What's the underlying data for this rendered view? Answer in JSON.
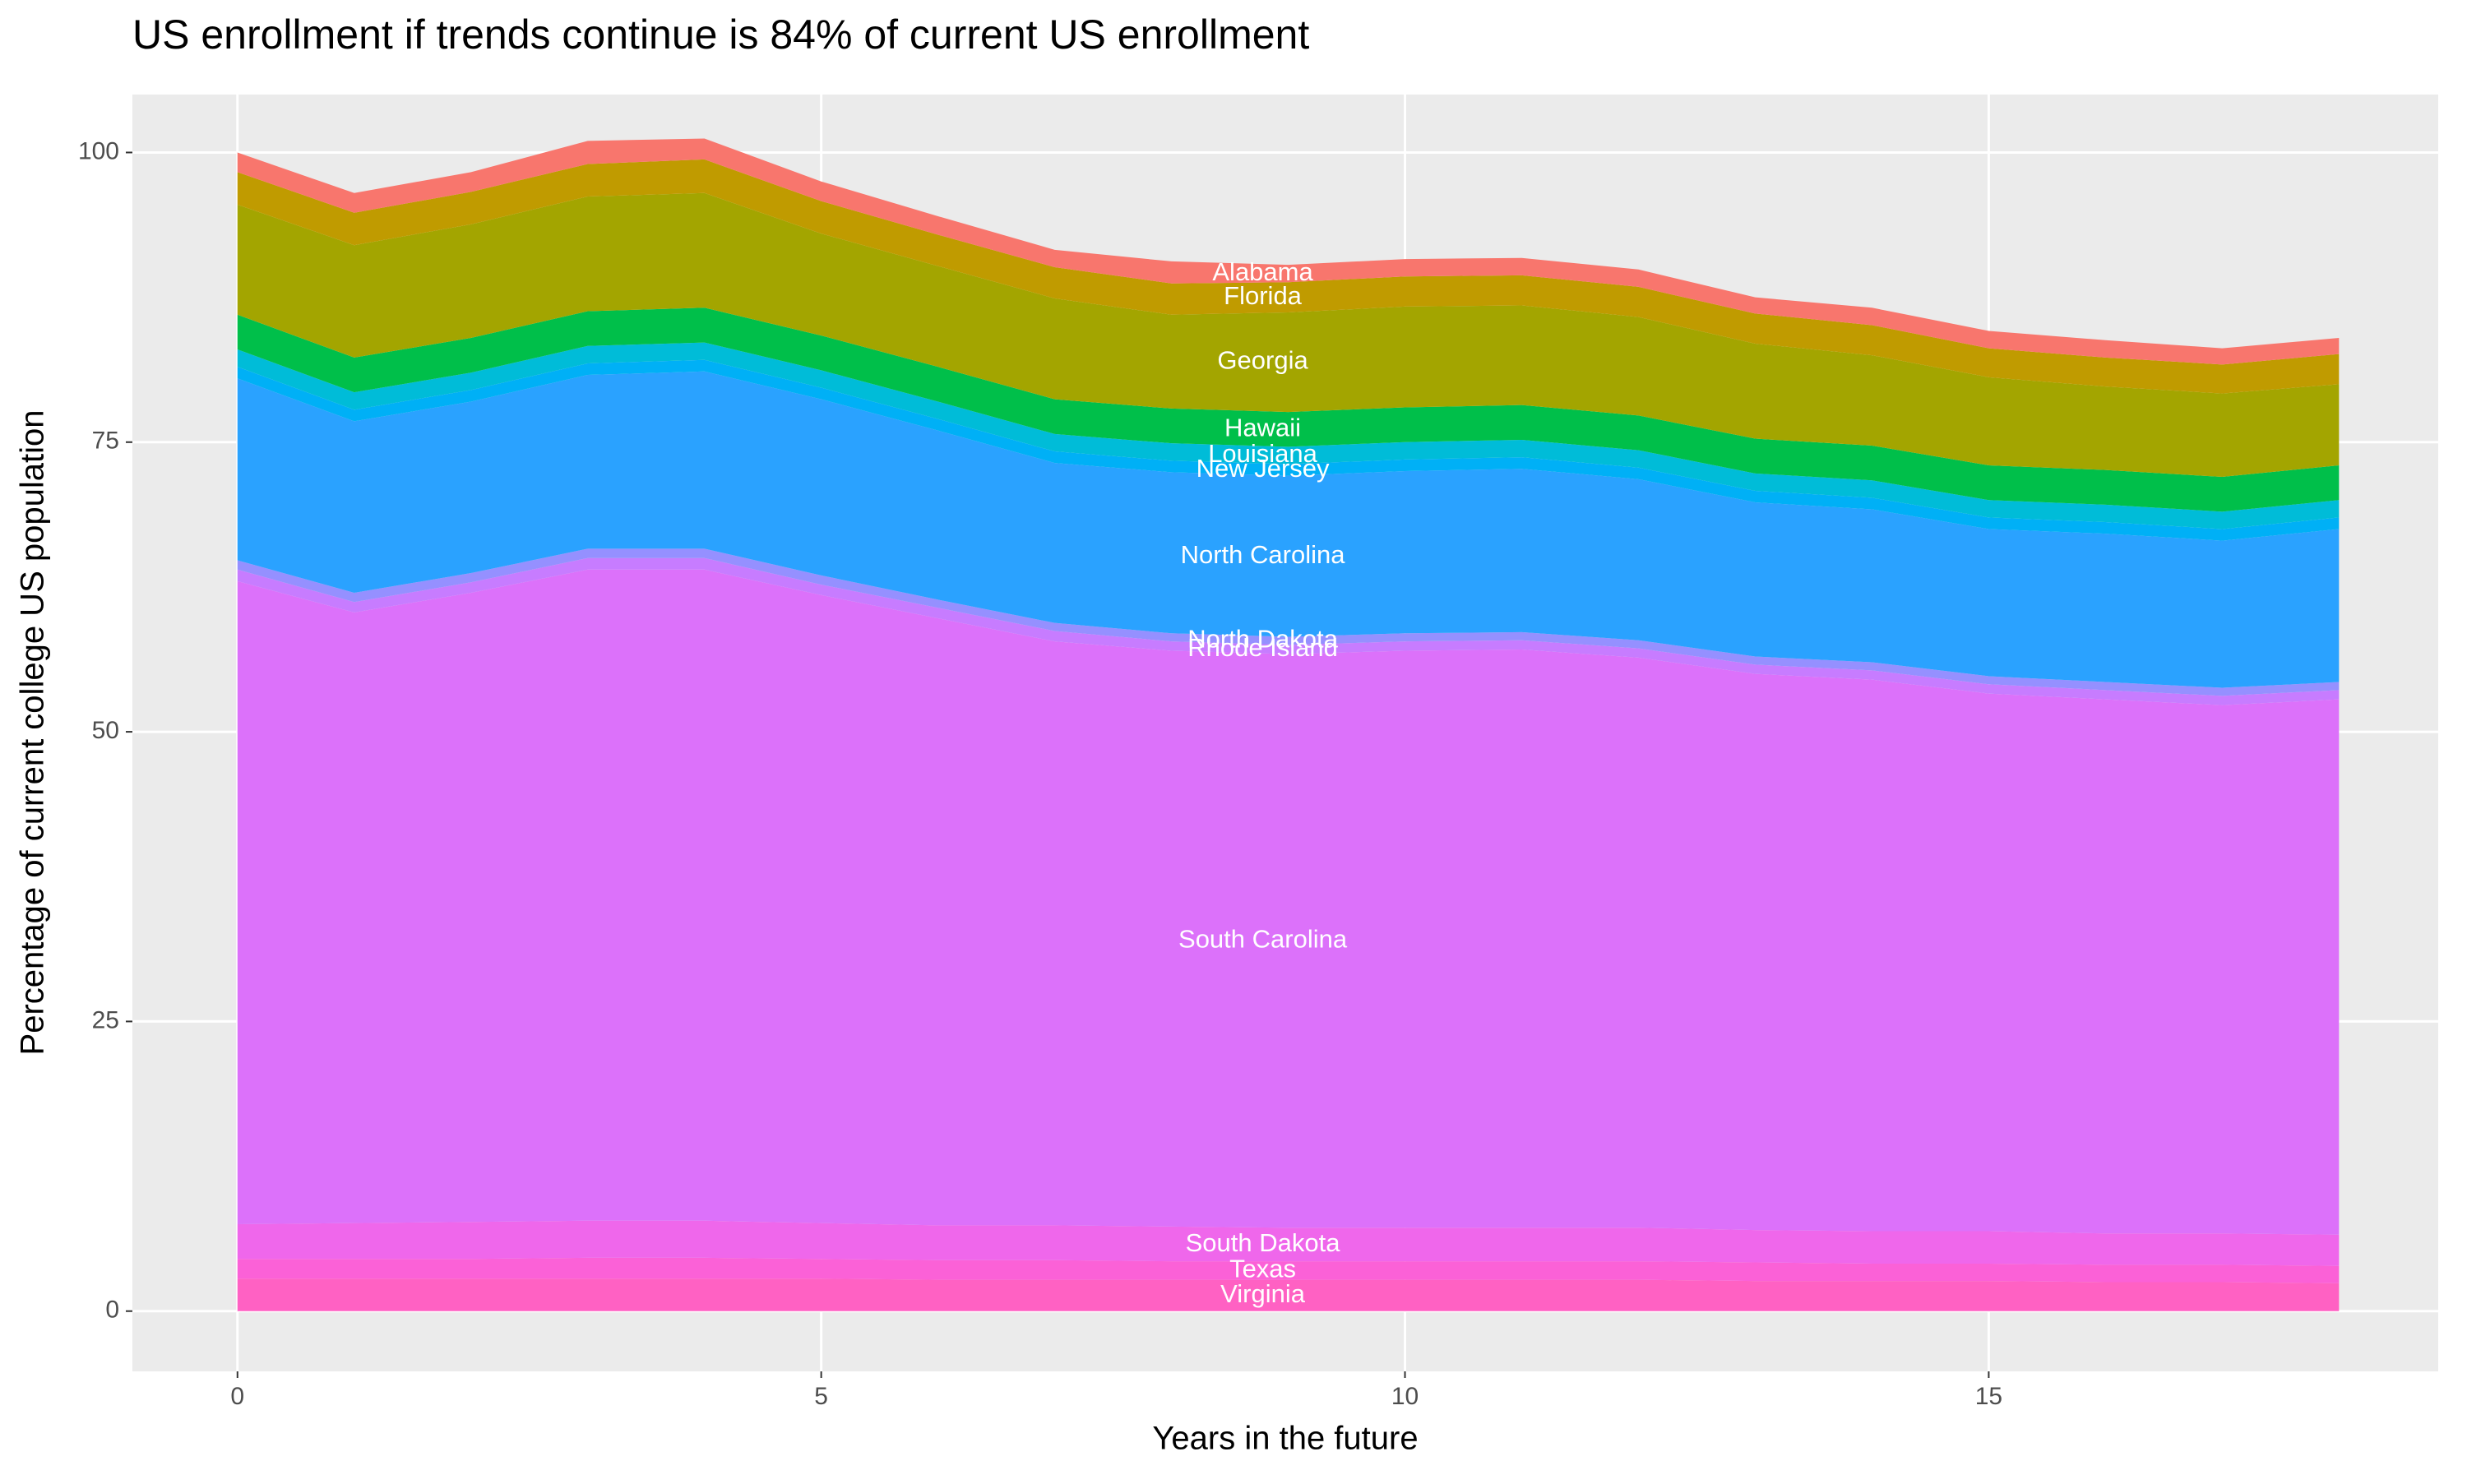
{
  "chart_data": {
    "type": "stacked_area",
    "title": "US enrollment if trends continue is 84% of current US enrollment",
    "x_label": "Years in the future",
    "y_label": "Percentage of current college US population",
    "x": [
      0,
      1,
      2,
      3,
      4,
      5,
      6,
      7,
      8,
      9,
      10,
      11,
      12,
      13,
      14,
      15,
      16,
      17,
      18
    ],
    "xlim": [
      -0.9,
      18.85
    ],
    "xticks": [
      0,
      5,
      10,
      15
    ],
    "ylim": [
      -5.2,
      105
    ],
    "yticks": [
      0,
      25,
      50,
      75,
      100
    ],
    "grid": true,
    "series": [
      {
        "name": "Virginia",
        "color": "#FF61C3",
        "values": [
          2.8,
          2.8,
          2.8,
          2.8,
          2.8,
          2.8,
          2.7,
          2.7,
          2.7,
          2.7,
          2.7,
          2.7,
          2.7,
          2.6,
          2.6,
          2.6,
          2.5,
          2.5,
          2.4
        ]
      },
      {
        "name": "Texas",
        "color": "#FB61D7",
        "values": [
          1.7,
          1.7,
          1.7,
          1.8,
          1.8,
          1.7,
          1.7,
          1.7,
          1.6,
          1.6,
          1.6,
          1.6,
          1.6,
          1.6,
          1.5,
          1.5,
          1.5,
          1.5,
          1.5
        ]
      },
      {
        "name": "South Dakota",
        "color": "#EF67EB",
        "values": [
          3.0,
          3.1,
          3.2,
          3.2,
          3.2,
          3.1,
          3.0,
          3.0,
          3.0,
          2.9,
          2.9,
          2.9,
          2.9,
          2.8,
          2.8,
          2.8,
          2.7,
          2.7,
          2.7
        ]
      },
      {
        "name": "South Carolina",
        "color": "#DC71FA",
        "values": [
          55.5,
          52.7,
          54.3,
          56.2,
          56.2,
          54.2,
          52.4,
          50.4,
          49.7,
          49.5,
          49.8,
          49.9,
          49.2,
          48.0,
          47.6,
          46.4,
          46.1,
          45.6,
          46.2
        ]
      },
      {
        "name": "Rhode Island",
        "color": "#C77CFF",
        "values": [
          1.0,
          0.9,
          0.9,
          1.0,
          1.0,
          0.9,
          0.9,
          0.9,
          0.8,
          0.8,
          0.8,
          0.8,
          0.8,
          0.8,
          0.8,
          0.8,
          0.8,
          0.8,
          0.8
        ]
      },
      {
        "name": "North Dakota",
        "color": "#9590FF",
        "values": [
          0.8,
          0.8,
          0.8,
          0.8,
          0.8,
          0.8,
          0.7,
          0.7,
          0.7,
          0.7,
          0.7,
          0.7,
          0.7,
          0.7,
          0.7,
          0.7,
          0.7,
          0.7,
          0.7
        ]
      },
      {
        "name": "North Carolina",
        "color": "#2AA2FF",
        "values": [
          15.7,
          14.8,
          14.8,
          15.0,
          15.3,
          15.2,
          14.6,
          13.8,
          13.9,
          13.9,
          14.0,
          14.1,
          13.9,
          13.3,
          13.2,
          12.7,
          12.8,
          12.7,
          13.2
        ]
      },
      {
        "name": "New Jersey",
        "color": "#00B0F6",
        "values": [
          1.0,
          1.0,
          1.0,
          1.0,
          1.0,
          1.0,
          1.0,
          1.0,
          1.0,
          1.0,
          1.0,
          1.0,
          1.0,
          1.0,
          1.0,
          1.0,
          1.0,
          1.0,
          1.0
        ]
      },
      {
        "name": "Louisiana",
        "color": "#00BCD8",
        "values": [
          1.5,
          1.5,
          1.5,
          1.5,
          1.5,
          1.5,
          1.5,
          1.5,
          1.5,
          1.5,
          1.5,
          1.5,
          1.5,
          1.5,
          1.5,
          1.5,
          1.5,
          1.5,
          1.5
        ]
      },
      {
        "name": "Hawaii",
        "color": "#00BF4A",
        "values": [
          3.0,
          3.0,
          3.0,
          3.0,
          3.0,
          3.0,
          3.0,
          3.0,
          3.0,
          3.0,
          3.0,
          3.0,
          3.0,
          3.0,
          3.0,
          3.0,
          3.0,
          3.0,
          3.0
        ]
      },
      {
        "name": "Georgia",
        "color": "#A3A500",
        "values": [
          9.5,
          9.7,
          9.8,
          9.9,
          9.9,
          8.8,
          8.7,
          8.7,
          8.1,
          8.6,
          8.7,
          8.6,
          8.5,
          8.2,
          7.8,
          7.6,
          7.2,
          7.2,
          7.0
        ]
      },
      {
        "name": "Florida",
        "color": "#C09B00",
        "values": [
          2.8,
          2.8,
          2.8,
          2.8,
          2.9,
          2.8,
          2.7,
          2.7,
          2.7,
          2.6,
          2.6,
          2.6,
          2.6,
          2.6,
          2.6,
          2.5,
          2.5,
          2.5,
          2.6
        ]
      },
      {
        "name": "Alabama",
        "color": "#F8766D",
        "values": [
          1.7,
          1.7,
          1.7,
          2.0,
          1.8,
          1.7,
          1.6,
          1.5,
          1.9,
          1.5,
          1.5,
          1.5,
          1.5,
          1.4,
          1.5,
          1.5,
          1.5,
          1.4,
          1.4
        ]
      }
    ]
  }
}
